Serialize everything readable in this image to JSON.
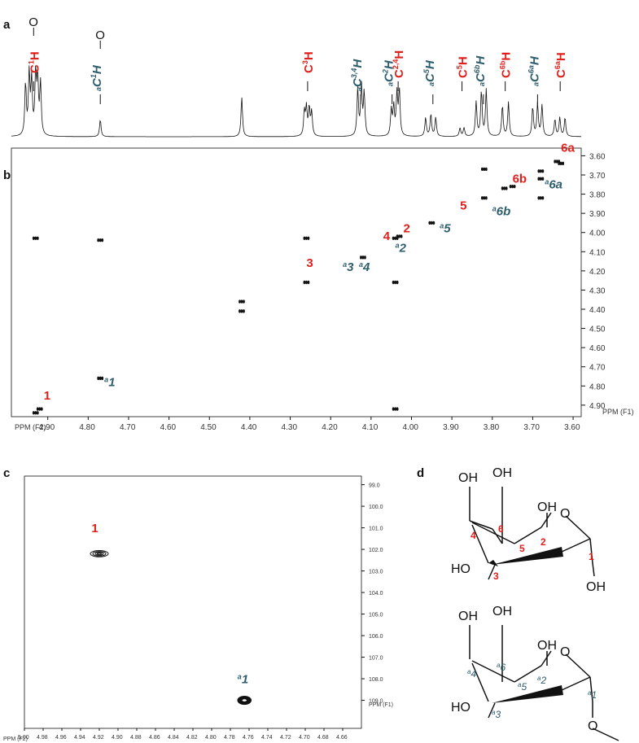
{
  "chart_data": [
    {
      "panel": "a",
      "type": "line",
      "title": "",
      "xlabel": "",
      "ylabel": "",
      "xlim": [
        4.99,
        3.58
      ],
      "peaks": [
        {
          "x": 4.955,
          "h": 0.6
        },
        {
          "x": 4.946,
          "h": 0.7
        },
        {
          "x": 4.94,
          "h": 0.62
        },
        {
          "x": 4.93,
          "h": 0.7
        },
        {
          "x": 4.925,
          "h": 0.62
        },
        {
          "x": 4.918,
          "h": 0.6
        },
        {
          "x": 4.77,
          "h": 0.2
        },
        {
          "x": 4.42,
          "h": 0.46
        },
        {
          "x": 4.265,
          "h": 0.28
        },
        {
          "x": 4.26,
          "h": 0.32
        },
        {
          "x": 4.253,
          "h": 0.32
        },
        {
          "x": 4.247,
          "h": 0.28
        },
        {
          "x": 4.133,
          "h": 0.55
        },
        {
          "x": 4.124,
          "h": 0.58
        },
        {
          "x": 4.117,
          "h": 0.5
        },
        {
          "x": 4.05,
          "h": 0.3
        },
        {
          "x": 4.044,
          "h": 0.33
        },
        {
          "x": 4.036,
          "h": 0.48
        },
        {
          "x": 4.03,
          "h": 0.52
        },
        {
          "x": 3.965,
          "h": 0.22
        },
        {
          "x": 3.952,
          "h": 0.26
        },
        {
          "x": 3.94,
          "h": 0.22
        },
        {
          "x": 3.88,
          "h": 0.1
        },
        {
          "x": 3.87,
          "h": 0.1
        },
        {
          "x": 3.84,
          "h": 0.4
        },
        {
          "x": 3.827,
          "h": 0.52
        },
        {
          "x": 3.815,
          "h": 0.54
        },
        {
          "x": 3.775,
          "h": 0.36
        },
        {
          "x": 3.76,
          "h": 0.4
        },
        {
          "x": 3.7,
          "h": 0.34
        },
        {
          "x": 3.688,
          "h": 0.38
        },
        {
          "x": 3.677,
          "h": 0.36
        },
        {
          "x": 3.645,
          "h": 0.2
        },
        {
          "x": 3.633,
          "h": 0.22
        },
        {
          "x": 3.62,
          "h": 0.22
        }
      ],
      "annotations": [
        {
          "series": "red",
          "main": "C",
          "sup": "1",
          "tail": "H",
          "x": 4.935,
          "marker": "O"
        },
        {
          "series": "teal",
          "pre": "a",
          "main": "C",
          "sup": "1",
          "tail": "H",
          "x": 4.77,
          "marker": "O"
        },
        {
          "series": "red",
          "main": "C",
          "sup": "3",
          "tail": "H",
          "x": 4.257
        },
        {
          "series": "teal",
          "pre": "a",
          "main": "C",
          "sup": "3,4",
          "tail": "H",
          "x": 4.126
        },
        {
          "series": "teal",
          "pre": "a",
          "main": "C",
          "sup": "2",
          "tail": "H",
          "x": 4.048
        },
        {
          "series": "red",
          "main": "C",
          "sup": "2,4",
          "tail": "H",
          "x": 4.033
        },
        {
          "series": "teal",
          "pre": "a",
          "main": "C",
          "sup": "5",
          "tail": "H",
          "x": 3.947
        },
        {
          "series": "red",
          "main": "C",
          "sup": "5",
          "tail": "H",
          "x": 3.875
        },
        {
          "series": "teal",
          "pre": "a",
          "main": "C",
          "sup": "6b",
          "tail": "H",
          "x": 3.822
        },
        {
          "series": "red",
          "main": "C",
          "sup": "6b",
          "tail": "H",
          "x": 3.768
        },
        {
          "series": "teal",
          "pre": "a",
          "main": "C",
          "sup": "6a",
          "tail": "H",
          "x": 3.688
        },
        {
          "series": "red",
          "main": "C",
          "sup": "6a",
          "tail": "H",
          "x": 3.632
        }
      ]
    },
    {
      "panel": "b",
      "type": "scatter",
      "title": "",
      "xlabel": "PPM (F2)",
      "ylabel": "PPM (F1)",
      "xlim": [
        4.99,
        3.58
      ],
      "ylim": [
        3.56,
        4.96
      ],
      "xticks": [
        4.9,
        4.8,
        4.7,
        4.6,
        4.5,
        4.4,
        4.3,
        4.2,
        4.1,
        4.0,
        3.9,
        3.8,
        3.7,
        3.6
      ],
      "yticks": [
        3.6,
        3.7,
        3.8,
        3.9,
        4.0,
        4.1,
        4.2,
        4.3,
        4.4,
        4.5,
        4.6,
        4.7,
        4.8,
        4.9
      ],
      "crosspeaks": [
        {
          "x": 4.93,
          "y": 4.94
        },
        {
          "x": 4.92,
          "y": 4.92
        },
        {
          "x": 4.93,
          "y": 4.03
        },
        {
          "x": 4.77,
          "y": 4.04
        },
        {
          "x": 4.77,
          "y": 4.76
        },
        {
          "x": 4.42,
          "y": 4.36
        },
        {
          "x": 4.42,
          "y": 4.41
        },
        {
          "x": 4.26,
          "y": 4.03
        },
        {
          "x": 4.26,
          "y": 4.26
        },
        {
          "x": 4.12,
          "y": 4.13
        },
        {
          "x": 4.04,
          "y": 4.03
        },
        {
          "x": 4.03,
          "y": 4.02
        },
        {
          "x": 4.04,
          "y": 4.26
        },
        {
          "x": 4.04,
          "y": 4.92
        },
        {
          "x": 3.95,
          "y": 3.95
        },
        {
          "x": 3.82,
          "y": 3.82
        },
        {
          "x": 3.82,
          "y": 3.67
        },
        {
          "x": 3.77,
          "y": 3.77
        },
        {
          "x": 3.75,
          "y": 3.76
        },
        {
          "x": 3.68,
          "y": 3.68
        },
        {
          "x": 3.68,
          "y": 3.72
        },
        {
          "x": 3.68,
          "y": 3.82
        },
        {
          "x": 3.63,
          "y": 3.64
        },
        {
          "x": 3.64,
          "y": 3.63
        }
      ],
      "labels": [
        {
          "series": "red",
          "text": "1",
          "x": 4.91,
          "y": 4.87
        },
        {
          "series": "teal",
          "pre": "a",
          "text": "1",
          "x": 4.76,
          "y": 4.8
        },
        {
          "series": "red",
          "text": "3",
          "x": 4.26,
          "y": 4.18
        },
        {
          "series": "teal",
          "pre": "a",
          "text": "3",
          "x": 4.17,
          "y": 4.2
        },
        {
          "series": "teal",
          "pre": "a",
          "text": "4",
          "x": 4.13,
          "y": 4.2
        },
        {
          "series": "red",
          "text": "4",
          "x": 4.07,
          "y": 4.04
        },
        {
          "series": "red",
          "text": "2",
          "x": 4.02,
          "y": 4.0
        },
        {
          "series": "teal",
          "pre": "a",
          "text": "2",
          "x": 4.04,
          "y": 4.1
        },
        {
          "series": "teal",
          "pre": "a",
          "text": "5",
          "x": 3.93,
          "y": 4.0
        },
        {
          "series": "red",
          "text": "5",
          "x": 3.88,
          "y": 3.88
        },
        {
          "series": "teal",
          "pre": "a",
          "text": "6b",
          "x": 3.8,
          "y": 3.91
        },
        {
          "series": "red",
          "text": "6b",
          "x": 3.75,
          "y": 3.74
        },
        {
          "series": "teal",
          "pre": "a",
          "text": "6a",
          "x": 3.67,
          "y": 3.77
        },
        {
          "series": "red",
          "text": "6a",
          "x": 3.63,
          "y": 3.58
        }
      ]
    },
    {
      "panel": "c",
      "type": "scatter",
      "title": "",
      "xlabel": "PPM (F2)",
      "ylabel": "PPM (F1)",
      "xlim": [
        5.0,
        4.64
      ],
      "ylim": [
        98.6,
        110.3
      ],
      "xticks": [
        5.0,
        4.98,
        4.96,
        4.94,
        4.92,
        4.9,
        4.88,
        4.86,
        4.84,
        4.82,
        4.8,
        4.78,
        4.76,
        4.74,
        4.72,
        4.7,
        4.68,
        4.66
      ],
      "yticks": [
        99.0,
        100.0,
        101.0,
        102.0,
        103.0,
        104.0,
        105.0,
        106.0,
        107.0,
        108.0,
        109.0
      ],
      "crosspeaks": [
        {
          "x": 4.92,
          "y": 102.2
        },
        {
          "x": 4.765,
          "y": 109.0
        }
      ],
      "labels": [
        {
          "series": "red",
          "text": "1",
          "x": 4.924,
          "y": 101.2
        },
        {
          "series": "teal",
          "pre": "a",
          "text": "1",
          "x": 4.768,
          "y": 108.2
        }
      ]
    }
  ],
  "panels": {
    "a": "a",
    "b": "b",
    "c": "c",
    "d": "d"
  },
  "structures": {
    "top": {
      "oh_labels": [
        "OH",
        "OH",
        "OH",
        "HO",
        "OH"
      ],
      "ring_o": "O",
      "numbers": [
        "6",
        "4",
        "5",
        "2",
        "3",
        "1"
      ]
    },
    "bottom": {
      "oh_labels": [
        "OH",
        "OH",
        "OH",
        "HO"
      ],
      "ring_o": "O",
      "glyco_o": "O",
      "pre": "a",
      "numbers": [
        "6",
        "4",
        "5",
        "2",
        "3",
        "1"
      ]
    }
  },
  "colors": {
    "red": "#e0201c",
    "teal": "#2e5e6e",
    "ink": "#111111"
  }
}
